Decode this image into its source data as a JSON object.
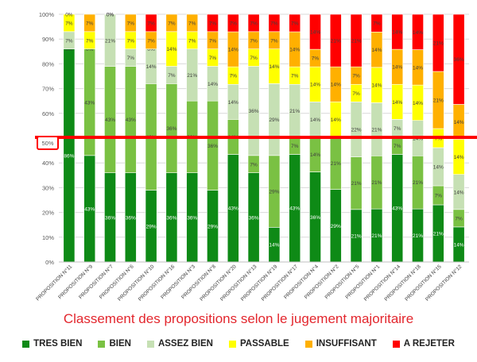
{
  "chart_data": {
    "type": "bar",
    "stacked": "percent",
    "title": "Classement des propositions selon le jugement majoritaire",
    "categories": [
      "PROPOSITION N°11",
      "PROPOSITION N°9",
      "PROPOSITION N°7",
      "PROPOSITION N°6",
      "PROPOSITION N°10",
      "PROPOSITION N°16",
      "PROPOSITION N°3",
      "PROPOSITION N°8",
      "PROPOSITION N°20",
      "PROPOSITION N°13",
      "PROPOSITION N°19",
      "PROPOSITION N°17",
      "PROPOSITION N°4",
      "PROPOSITION N°2",
      "PROPOSITION N°5",
      "PROPOSITION N°1",
      "PROPOSITION N°14",
      "PROPOSITION N°18",
      "PROPOSITION N°15",
      "PROPOSITION N°12"
    ],
    "series": [
      {
        "name": "TRES BIEN",
        "color": "#0e8a16",
        "values": [
          86,
          43,
          36,
          36,
          29,
          36,
          36,
          29,
          43,
          36,
          14,
          43,
          36,
          29,
          21,
          21,
          43,
          21,
          21,
          14
        ]
      },
      {
        "name": "BIEN",
        "color": "#7ac143",
        "values": [
          0,
          43,
          43,
          43,
          43,
          36,
          29,
          36,
          14,
          7,
          29,
          7,
          14,
          21,
          21,
          21,
          7,
          21,
          7,
          7
        ]
      },
      {
        "name": "ASSEZ BIEN",
        "color": "#c6e0b4",
        "values": [
          7,
          0,
          21,
          7,
          14,
          7,
          21,
          14,
          14,
          36,
          29,
          21,
          14,
          0,
          22,
          21,
          7,
          14,
          14,
          14
        ]
      },
      {
        "name": "PASSABLE",
        "color": "#ffff00",
        "values": [
          7,
          7,
          0,
          7,
          0,
          14,
          7,
          7,
          7,
          7,
          14,
          7,
          14,
          14,
          7,
          14,
          14,
          14,
          7,
          14
        ]
      },
      {
        "name": "INSUFFISANT",
        "color": "#ffb000",
        "values": [
          0,
          7,
          0,
          7,
          7,
          7,
          7,
          7,
          14,
          7,
          7,
          14,
          7,
          14,
          7,
          14,
          14,
          14,
          21,
          14
        ]
      },
      {
        "name": "A REJETER",
        "color": "#ff0000",
        "values": [
          0,
          0,
          0,
          0,
          7,
          0,
          0,
          7,
          7,
          7,
          7,
          7,
          14,
          21,
          21,
          7,
          14,
          14,
          21,
          36
        ]
      }
    ],
    "yticks": [
      "0%",
      "10%",
      "20%",
      "30%",
      "40%",
      "50%",
      "60%",
      "70%",
      "80%",
      "90%",
      "100%"
    ],
    "ylim": [
      0,
      100
    ],
    "threshold_label": "50%",
    "threshold_value": 50,
    "legend_position": "bottom"
  }
}
